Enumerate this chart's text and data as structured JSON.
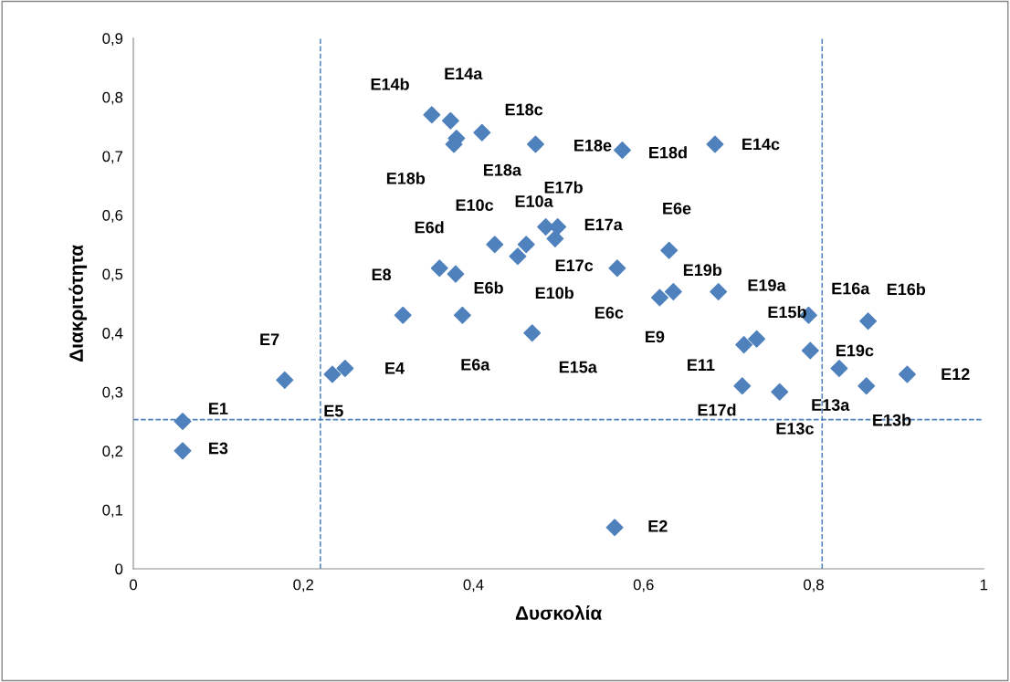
{
  "chart_data": {
    "type": "scatter",
    "xlabel": "Δυσκολία",
    "ylabel": "Διακριτότητα",
    "x": [
      0.058,
      0.058,
      0.178,
      0.234,
      0.249,
      0.317,
      0.36,
      0.379,
      0.387,
      0.351,
      0.373,
      0.38,
      0.377,
      0.41,
      0.473,
      0.575,
      0.684,
      0.425,
      0.452,
      0.462,
      0.485,
      0.499,
      0.496,
      0.569,
      0.469,
      0.63,
      0.619,
      0.635,
      0.688,
      0.718,
      0.733,
      0.794,
      0.796,
      0.83,
      0.864,
      0.862,
      0.91,
      0.76,
      0.716,
      0.566
    ],
    "series": [
      {
        "color": "#4f81bd",
        "values": [
          0.25,
          0.2,
          0.32,
          0.33,
          0.34,
          0.43,
          0.51,
          0.5,
          0.43,
          0.77,
          0.76,
          0.73,
          0.72,
          0.74,
          0.72,
          0.71,
          0.72,
          0.55,
          0.53,
          0.55,
          0.58,
          0.58,
          0.56,
          0.51,
          0.4,
          0.54,
          0.46,
          0.47,
          0.47,
          0.38,
          0.39,
          0.43,
          0.37,
          0.34,
          0.42,
          0.31,
          0.33,
          0.3,
          0.31,
          0.07
        ]
      }
    ],
    "marker": "diamond",
    "xlim": [
      0,
      1
    ],
    "ylim": [
      0,
      0.9
    ],
    "xticks": [
      0,
      {
        "value": 0.2,
        "label": "0,2"
      },
      {
        "value": 0.4,
        "label": "0,4"
      },
      {
        "value": 0.6,
        "label": "0,6"
      },
      {
        "value": 0.8,
        "label": "0,8"
      },
      1
    ],
    "yticks": [
      0,
      {
        "value": 0.1,
        "label": "0,1"
      },
      {
        "value": 0.2,
        "label": "0,2"
      },
      {
        "value": 0.3,
        "label": "0,3"
      },
      {
        "value": 0.4,
        "label": "0,4"
      },
      {
        "value": 0.5,
        "label": "0,5"
      },
      {
        "value": 0.6,
        "label": "0,6"
      },
      {
        "value": 0.7,
        "label": "0,7"
      },
      {
        "value": 0.8,
        "label": "0,8"
      },
      {
        "value": 0.9,
        "label": "0,9"
      }
    ],
    "grid": false,
    "legend": false,
    "ref_lines": [
      {
        "axis": "y",
        "value": 0.253,
        "color": "#4f81bd",
        "line_style": "dashed"
      },
      {
        "axis": "x",
        "value": 0.22,
        "color": "#4f81bd",
        "line_style": "dashed"
      },
      {
        "axis": "x",
        "value": 0.81,
        "color": "#4f81bd",
        "line_style": "dashed"
      }
    ],
    "annotations": [
      {
        "text": "E1",
        "x": 0.058,
        "y": 0.25
      },
      {
        "text": "E3",
        "x": 0.058,
        "y": 0.2
      },
      {
        "text": "E7",
        "x": 0.178,
        "y": 0.32
      },
      {
        "text": "E5",
        "x": 0.234,
        "y": 0.33
      },
      {
        "text": "E4",
        "x": 0.249,
        "y": 0.34
      },
      {
        "text": "E8",
        "x": 0.317,
        "y": 0.43
      },
      {
        "text": "E6d",
        "x": 0.36,
        "y": 0.51
      },
      {
        "text": "E6b",
        "x": 0.379,
        "y": 0.5
      },
      {
        "text": "E6a",
        "x": 0.387,
        "y": 0.43
      },
      {
        "text": "E14b",
        "x": 0.351,
        "y": 0.77
      },
      {
        "text": "E14a",
        "x": 0.373,
        "y": 0.76
      },
      {
        "text": "E18a",
        "x": 0.38,
        "y": 0.73
      },
      {
        "text": "E18b",
        "x": 0.377,
        "y": 0.72
      },
      {
        "text": "E18c",
        "x": 0.41,
        "y": 0.74
      },
      {
        "text": "E18e",
        "x": 0.473,
        "y": 0.72
      },
      {
        "text": "E18d",
        "x": 0.575,
        "y": 0.71
      },
      {
        "text": "E14c",
        "x": 0.684,
        "y": 0.72
      },
      {
        "text": "E10c",
        "x": 0.425,
        "y": 0.55
      },
      {
        "text": "E10b",
        "x": 0.452,
        "y": 0.53
      },
      {
        "text": "E10a",
        "x": 0.462,
        "y": 0.55
      },
      {
        "text": "E17b",
        "x": 0.485,
        "y": 0.58
      },
      {
        "text": "E17a",
        "x": 0.496,
        "y": 0.56
      },
      {
        "text": "E17c",
        "x": 0.569,
        "y": 0.51
      },
      {
        "text": "E15a",
        "x": 0.469,
        "y": 0.4
      },
      {
        "text": "E6e",
        "x": 0.63,
        "y": 0.54
      },
      {
        "text": "E6c",
        "x": 0.619,
        "y": 0.46
      },
      {
        "text": "E9",
        "x": 0.619,
        "y": 0.46
      },
      {
        "text": "E19b",
        "x": 0.635,
        "y": 0.47
      },
      {
        "text": "E19a",
        "x": 0.688,
        "y": 0.47
      },
      {
        "text": "E11",
        "x": 0.718,
        "y": 0.38
      },
      {
        "text": "E15b",
        "x": 0.733,
        "y": 0.39
      },
      {
        "text": "E16a",
        "x": 0.794,
        "y": 0.43
      },
      {
        "text": "E19c",
        "x": 0.796,
        "y": 0.37
      },
      {
        "text": "E13a",
        "x": 0.83,
        "y": 0.34
      },
      {
        "text": "E16b",
        "x": 0.864,
        "y": 0.42
      },
      {
        "text": "E13b",
        "x": 0.862,
        "y": 0.31
      },
      {
        "text": "E12",
        "x": 0.91,
        "y": 0.33
      },
      {
        "text": "E13c",
        "x": 0.76,
        "y": 0.3
      },
      {
        "text": "E17d",
        "x": 0.716,
        "y": 0.31
      },
      {
        "text": "E2",
        "x": 0.566,
        "y": 0.07
      }
    ]
  }
}
